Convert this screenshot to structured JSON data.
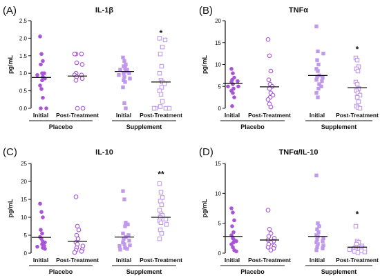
{
  "colors": {
    "placebo": "#a855d8",
    "supplement": "#c199ea",
    "axis": "#111111"
  },
  "chart_data": [
    {
      "type": "scatter",
      "panel_letter": "(A)",
      "title": "IL-1β",
      "ylabel": "pg/mL",
      "ylim": [
        0,
        2.5
      ],
      "yticks": [
        "0.0",
        "0.5",
        "1.0",
        "1.5",
        "2.0",
        "2.5"
      ],
      "categories": [
        "Initial",
        "Post-Treatment",
        "Initial",
        "Post-Treatment"
      ],
      "groups": [
        {
          "label": "Placebo",
          "categories": [
            0,
            1
          ]
        },
        {
          "label": "Supplement",
          "categories": [
            2,
            3
          ]
        }
      ],
      "series": [
        {
          "category": 0,
          "marker": "circle",
          "filled": true,
          "mean": 0.88,
          "values": [
            2.05,
            1.55,
            1.35,
            1.25,
            1.0,
            1.0,
            0.95,
            0.9,
            0.85,
            0.8,
            0.65,
            0.55,
            0.3,
            0.0,
            0.0
          ]
        },
        {
          "category": 1,
          "marker": "circle",
          "filled": false,
          "mean": 0.92,
          "values": [
            1.55,
            1.55,
            1.55,
            1.3,
            1.25,
            1.0,
            0.95,
            0.95,
            0.9,
            0.85,
            0.8,
            0.0,
            0.0
          ]
        },
        {
          "category": 2,
          "marker": "square",
          "filled": true,
          "mean": 1.05,
          "values": [
            1.45,
            1.35,
            1.25,
            1.2,
            1.15,
            1.1,
            1.1,
            1.05,
            1.0,
            1.0,
            0.95,
            0.9,
            0.85,
            0.8,
            0.75,
            0.6,
            0.15,
            0.0
          ]
        },
        {
          "category": 3,
          "marker": "square",
          "filled": false,
          "mean": 0.75,
          "values": [
            2.0,
            1.95,
            1.75,
            1.55,
            1.2,
            1.0,
            0.8,
            0.75,
            0.7,
            0.6,
            0.5,
            0.4,
            0.2,
            0.05,
            0.0,
            0.0,
            0.0,
            0.0
          ]
        }
      ],
      "annotations": [
        {
          "category": 3,
          "text": "*",
          "y": 2.15
        }
      ]
    },
    {
      "type": "scatter",
      "panel_letter": "(B)",
      "title": "TNFα",
      "ylabel": "pg/mL",
      "ylim": [
        0,
        20
      ],
      "yticks": [
        "0",
        "5",
        "10",
        "15",
        "20"
      ],
      "categories": [
        "Initial",
        "Post-Treatment",
        "Initial",
        "Post-Treatment"
      ],
      "groups": [
        {
          "label": "Placebo",
          "categories": [
            0,
            1
          ]
        },
        {
          "label": "Supplement",
          "categories": [
            2,
            3
          ]
        }
      ],
      "series": [
        {
          "category": 0,
          "marker": "circle",
          "filled": true,
          "mean": 5.7,
          "values": [
            9.0,
            8.0,
            7.0,
            6.5,
            6.2,
            6.0,
            5.5,
            5.0,
            5.0,
            4.5,
            4.0,
            3.5,
            2.5,
            0.5
          ]
        },
        {
          "category": 1,
          "marker": "circle",
          "filled": false,
          "mean": 4.9,
          "values": [
            15.7,
            12.0,
            8.5,
            6.5,
            5.5,
            5.0,
            4.5,
            3.5,
            3.0,
            2.5,
            2.0,
            1.0,
            0.3
          ]
        },
        {
          "category": 2,
          "marker": "square",
          "filled": true,
          "mean": 7.5,
          "values": [
            18.7,
            13.0,
            12.5,
            11.0,
            10.0,
            9.0,
            8.5,
            7.5,
            7.2,
            7.0,
            6.5,
            6.2,
            5.5,
            5.0,
            4.5,
            3.5,
            2.5
          ]
        },
        {
          "category": 3,
          "marker": "square",
          "filled": false,
          "mean": 4.7,
          "values": [
            11.5,
            11.0,
            9.5,
            9.0,
            8.5,
            6.0,
            5.5,
            4.5,
            4.0,
            3.5,
            3.0,
            2.5,
            1.5,
            0.5,
            0.2,
            0.0
          ]
        }
      ],
      "annotations": [
        {
          "category": 3,
          "text": "*",
          "y": 13.5
        }
      ]
    },
    {
      "type": "scatter",
      "panel_letter": "(C)",
      "title": "IL-10",
      "ylabel": "pg/mL",
      "ylim": [
        0,
        25
      ],
      "yticks": [
        "0",
        "5",
        "10",
        "15",
        "20",
        "25"
      ],
      "categories": [
        "Initial",
        "Post-Treatment",
        "Initial",
        "Post-Treatment"
      ],
      "groups": [
        {
          "label": "Placebo",
          "categories": [
            0,
            1
          ]
        },
        {
          "label": "Supplement",
          "categories": [
            2,
            3
          ]
        }
      ],
      "series": [
        {
          "category": 0,
          "marker": "circle",
          "filled": true,
          "mean": 4.4,
          "values": [
            13.8,
            11.5,
            10.0,
            6.5,
            5.5,
            4.5,
            4.0,
            3.2,
            3.0,
            2.5,
            2.0,
            1.8,
            1.5,
            1.2
          ]
        },
        {
          "category": 1,
          "marker": "circle",
          "filled": false,
          "mean": 3.3,
          "values": [
            15.7,
            7.5,
            6.5,
            5.0,
            4.0,
            3.0,
            2.5,
            2.0,
            1.5,
            1.0,
            0.8,
            0.5,
            0.2
          ]
        },
        {
          "category": 2,
          "marker": "square",
          "filled": true,
          "mean": 4.5,
          "values": [
            17.3,
            15.0,
            8.5,
            8.0,
            7.5,
            5.5,
            5.0,
            4.5,
            4.0,
            3.5,
            3.0,
            2.5,
            2.2,
            2.0,
            1.5,
            1.2,
            1.0
          ]
        },
        {
          "category": 3,
          "marker": "square",
          "filled": false,
          "mean": 10.0,
          "values": [
            19.4,
            17.0,
            15.5,
            14.5,
            13.5,
            12.0,
            11.0,
            10.5,
            10.0,
            9.5,
            9.0,
            8.5,
            8.0,
            6.5,
            5.5,
            4.0
          ]
        }
      ],
      "annotations": [
        {
          "category": 3,
          "text": "**",
          "y": 22.0
        }
      ]
    },
    {
      "type": "scatter",
      "panel_letter": "(D)",
      "title": "TNFα/IL-10",
      "ylabel": "pg/mL",
      "ylim": [
        0,
        15
      ],
      "yticks": [
        "0",
        "5",
        "10",
        "15"
      ],
      "categories": [
        "Initial",
        "Post-Treatment",
        "Initial",
        "Post-Treatment"
      ],
      "groups": [
        {
          "label": "Placebo",
          "categories": [
            0,
            1
          ]
        },
        {
          "label": "Supplement",
          "categories": [
            2,
            3
          ]
        }
      ],
      "series": [
        {
          "category": 0,
          "marker": "circle",
          "filled": true,
          "mean": 2.8,
          "values": [
            7.5,
            6.8,
            5.5,
            4.5,
            3.5,
            3.0,
            2.5,
            2.2,
            2.0,
            1.8,
            1.5,
            1.0,
            0.5,
            0.3
          ]
        },
        {
          "category": 1,
          "marker": "circle",
          "filled": false,
          "mean": 2.2,
          "values": [
            7.2,
            4.0,
            3.3,
            2.8,
            2.5,
            2.2,
            2.0,
            1.8,
            1.5,
            1.2,
            1.0,
            0.8,
            0.5
          ]
        },
        {
          "category": 2,
          "marker": "square",
          "filled": true,
          "mean": 2.8,
          "values": [
            13.0,
            5.0,
            4.5,
            4.0,
            3.5,
            3.0,
            2.8,
            2.5,
            2.3,
            2.0,
            1.8,
            1.5,
            1.3,
            1.0,
            0.8,
            0.5
          ]
        },
        {
          "category": 3,
          "marker": "square",
          "filled": false,
          "mean": 1.0,
          "values": [
            4.5,
            2.0,
            1.8,
            1.5,
            1.2,
            1.0,
            0.9,
            0.8,
            0.7,
            0.6,
            0.5,
            0.4,
            0.3,
            0.2,
            0.1
          ]
        }
      ],
      "annotations": [
        {
          "category": 3,
          "text": "*",
          "y": 6.5
        }
      ]
    }
  ]
}
